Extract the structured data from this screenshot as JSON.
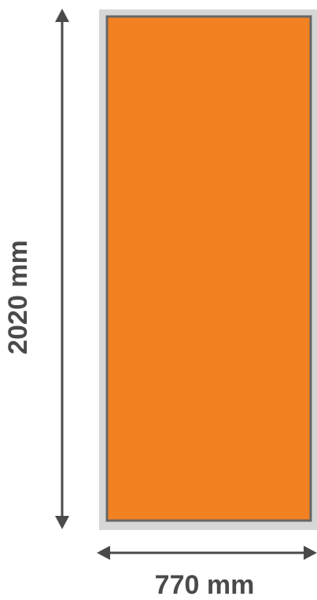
{
  "dimensions": {
    "height_label": "2020 mm",
    "width_label": "770 mm"
  },
  "colors": {
    "panel_fill": "#F28121",
    "panel_border": "#666666",
    "frame": "#D6D6D6",
    "arrow": "#4A4A4A",
    "label_text": "#4A4A4A"
  }
}
